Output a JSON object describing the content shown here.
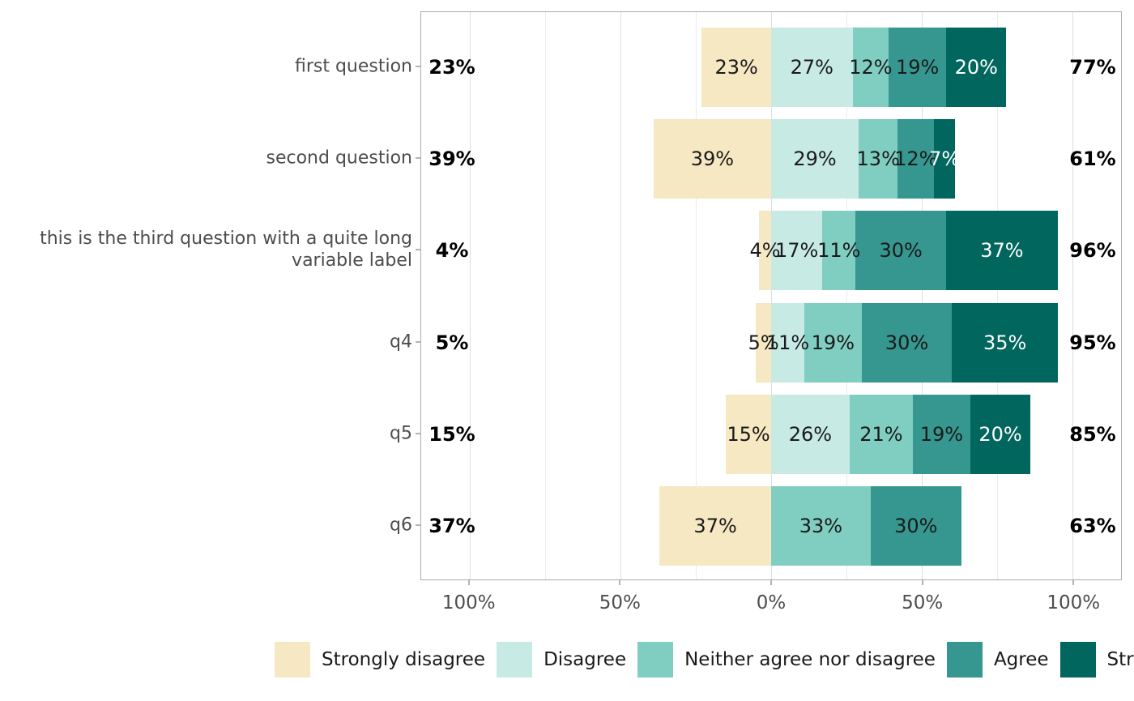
{
  "chart_data": {
    "type": "bar",
    "variant": "diverging-stacked-likert",
    "orientation": "horizontal",
    "grid": true,
    "legend_position": "bottom",
    "categories": [
      "Strongly disagree",
      "Disagree",
      "Neither agree nor disagree",
      "Agree",
      "Strongly agree"
    ],
    "colors": [
      "#f6e8c3",
      "#c7eae5",
      "#80cdc1",
      "#35978f",
      "#01665e"
    ],
    "label_text_colors": [
      "#1a1a1a",
      "#1a1a1a",
      "#1a1a1a",
      "#1a1a1a",
      "#ffffff"
    ],
    "axis": {
      "range": [
        -116,
        116
      ],
      "gridline_step": 25,
      "ticks": [
        -100,
        -50,
        0,
        50,
        100
      ],
      "tick_labels": [
        "100%",
        "50%",
        "0%",
        "50%",
        "100%"
      ]
    },
    "questions": [
      {
        "label": "first question",
        "values": [
          23,
          27,
          12,
          19,
          20
        ],
        "left_total": "23%",
        "right_total": "77%"
      },
      {
        "label": "second question",
        "values": [
          39,
          29,
          13,
          12,
          7
        ],
        "left_total": "39%",
        "right_total": "61%"
      },
      {
        "label": "this is the third question with a quite long variable label",
        "label_lines": [
          "this is the third question with a quite long",
          "variable label"
        ],
        "values": [
          4,
          17,
          11,
          30,
          37
        ],
        "left_total": "4%",
        "right_total": "96%"
      },
      {
        "label": "q4",
        "values": [
          5,
          11,
          19,
          30,
          35
        ],
        "left_total": "5%",
        "right_total": "95%"
      },
      {
        "label": "q5",
        "values": [
          15,
          26,
          21,
          19,
          20
        ],
        "left_total": "15%",
        "right_total": "85%"
      },
      {
        "label": "q6",
        "values": [
          37,
          0,
          33,
          30,
          0
        ],
        "left_total": "37%",
        "right_total": "63%"
      }
    ]
  }
}
